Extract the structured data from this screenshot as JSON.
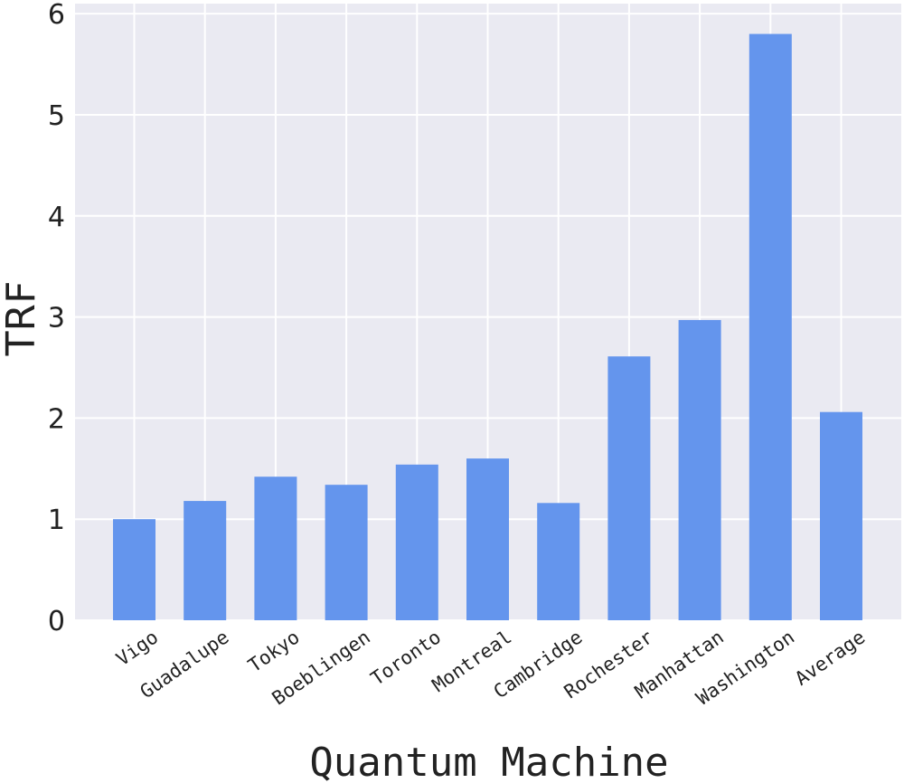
{
  "chart_data": {
    "type": "bar",
    "categories": [
      "Vigo",
      "Guadalupe",
      "Tokyo",
      "Boeblingen",
      "Toronto",
      "Montreal",
      "Cambridge",
      "Rochester",
      "Manhattan",
      "Washington",
      "Average"
    ],
    "values": [
      1.0,
      1.18,
      1.42,
      1.34,
      1.54,
      1.6,
      1.16,
      2.61,
      2.97,
      5.8,
      2.06
    ],
    "xlabel": "Quantum Machine",
    "ylabel": "TRF",
    "ylim": [
      0,
      6.1
    ],
    "yticks": [
      0,
      1,
      2,
      3,
      4,
      5,
      6
    ],
    "grid": true,
    "colors": {
      "bar": "#6495ED",
      "plot_background": "#EAEAF2",
      "grid": "#ffffff"
    }
  }
}
